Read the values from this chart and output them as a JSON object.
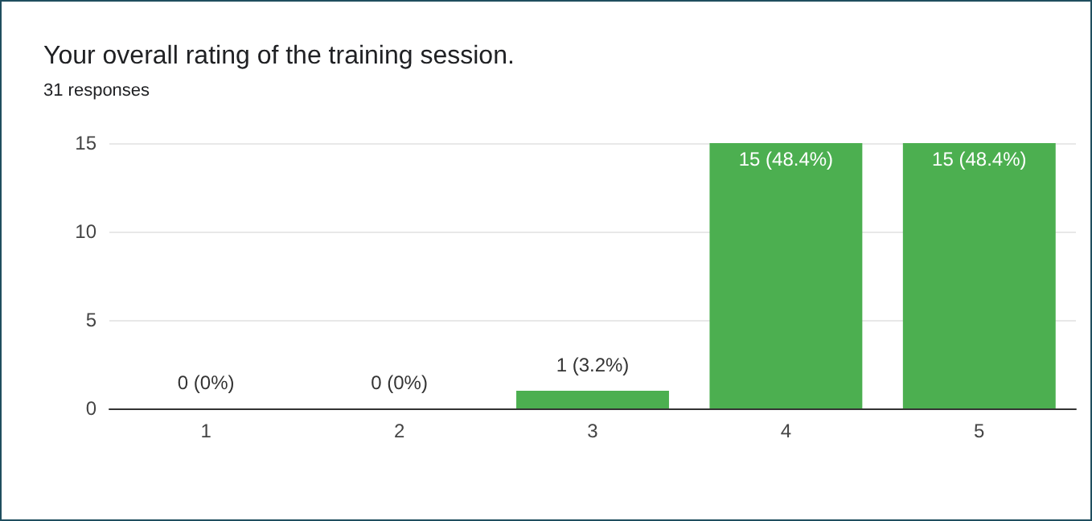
{
  "chart_data": {
    "type": "bar",
    "title": "Your overall rating of the training session.",
    "subtitle": "31 responses",
    "categories": [
      "1",
      "2",
      "3",
      "4",
      "5"
    ],
    "values": [
      0,
      0,
      1,
      15,
      15
    ],
    "value_labels": [
      "0 (0%)",
      "0 (0%)",
      "1 (3.2%)",
      "15 (48.4%)",
      "15 (48.4%)"
    ],
    "color": "#4caf50",
    "ylim": [
      0,
      15
    ],
    "yticks": [
      0,
      5,
      10,
      15
    ],
    "grid": "y"
  }
}
